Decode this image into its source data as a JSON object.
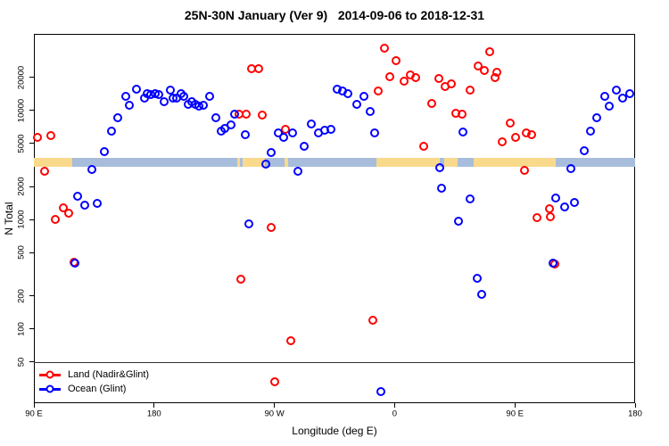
{
  "figure": {
    "title": "25N-30N January (Ver 9)   2014-09-06 to 2018-12-31"
  },
  "chart_data": {
    "type": "scatter",
    "title": "25N-30N January (Ver 9)   2014-09-06 to 2018-12-31",
    "xlabel": "Longitude (deg E)",
    "ylabel": "N Total",
    "x_axis": {
      "range_deg_east": [
        90,
        540
      ],
      "ticks": [
        {
          "value": 90,
          "label": "90 E"
        },
        {
          "value": 180,
          "label": "180"
        },
        {
          "value": 270,
          "label": "90 W"
        },
        {
          "value": 360,
          "label": "0"
        },
        {
          "value": 450,
          "label": "90 E"
        },
        {
          "value": 540,
          "label": "180"
        }
      ]
    },
    "y_axis": {
      "scale": "log",
      "range": [
        20,
        50000
      ],
      "ticks": [
        {
          "value": 20000,
          "label": "20000"
        },
        {
          "value": 10000,
          "label": "10000"
        },
        {
          "value": 5000,
          "label": "5000"
        },
        {
          "value": 2000,
          "label": "2000"
        },
        {
          "value": 1000,
          "label": "1000"
        },
        {
          "value": 500,
          "label": "500"
        },
        {
          "value": 200,
          "label": "200"
        },
        {
          "value": 100,
          "label": "100"
        },
        {
          "value": 50,
          "label": "50"
        }
      ]
    },
    "reference_line_y": 50,
    "map_strip": {
      "n_top": 3650,
      "n_bottom": 3050,
      "ocean_color": "#A7BDDB",
      "land_color": "#F9D98C",
      "ocean_range_deg": [
        90,
        540
      ],
      "land_segments_deg": [
        [
          90,
          119
        ],
        [
          242,
          244.5
        ],
        [
          246,
          263
        ],
        [
          277.5,
          280.5
        ],
        [
          346.5,
          394
        ],
        [
          397,
          407
        ],
        [
          419,
          480.5
        ]
      ]
    },
    "series": [
      {
        "name": "Land (Nadir&Glint)",
        "color": "#FF0000",
        "marker": "open-circle",
        "points": [
          [
            92.5,
            5700
          ],
          [
            102.5,
            5900
          ],
          [
            98,
            2770
          ],
          [
            106,
            1000
          ],
          [
            112,
            1280
          ],
          [
            116,
            1140
          ],
          [
            120,
            405
          ],
          [
            243.5,
            9260
          ],
          [
            249,
            9260
          ],
          [
            253,
            23800
          ],
          [
            258.5,
            23800
          ],
          [
            261,
            9100
          ],
          [
            267.5,
            840
          ],
          [
            278.5,
            6730
          ],
          [
            245,
            283
          ],
          [
            282.5,
            78
          ],
          [
            270.5,
            33
          ],
          [
            343.5,
            120
          ],
          [
            348,
            15100
          ],
          [
            352.5,
            36800
          ],
          [
            356.5,
            20400
          ],
          [
            361,
            28200
          ],
          [
            367,
            18600
          ],
          [
            372,
            20900
          ],
          [
            376,
            19700
          ],
          [
            382,
            4700
          ],
          [
            388,
            11600
          ],
          [
            393,
            19400
          ],
          [
            398,
            16600
          ],
          [
            402.5,
            17600
          ],
          [
            406,
            9440
          ],
          [
            410.5,
            9270
          ],
          [
            416.5,
            15400
          ],
          [
            422.5,
            25200
          ],
          [
            427,
            23000
          ],
          [
            431,
            34100
          ],
          [
            435,
            19700
          ],
          [
            436.5,
            22100
          ],
          [
            440.5,
            5160
          ],
          [
            446.5,
            7670
          ],
          [
            450.5,
            5670
          ],
          [
            457.5,
            2820
          ],
          [
            458.5,
            6240
          ],
          [
            462.5,
            6010
          ],
          [
            466.5,
            1040
          ],
          [
            476,
            1250
          ],
          [
            476.5,
            1060
          ],
          [
            480,
            396
          ]
        ]
      },
      {
        "name": "Ocean (Glint)",
        "color": "#0000FF",
        "marker": "open-circle",
        "points": [
          [
            120.5,
            400
          ],
          [
            122.5,
            1630
          ],
          [
            128,
            1350
          ],
          [
            133.5,
            2880
          ],
          [
            137.5,
            1400
          ],
          [
            142.5,
            4200
          ],
          [
            148,
            6470
          ],
          [
            153,
            8590
          ],
          [
            159,
            13500
          ],
          [
            161.5,
            11200
          ],
          [
            167,
            15700
          ],
          [
            173,
            12800
          ],
          [
            175,
            14300
          ],
          [
            177.5,
            13800
          ],
          [
            181,
            14300
          ],
          [
            183.5,
            14000
          ],
          [
            187.5,
            11900
          ],
          [
            192,
            15400
          ],
          [
            194,
            12800
          ],
          [
            197,
            13000
          ],
          [
            200,
            14100
          ],
          [
            202,
            13500
          ],
          [
            205.5,
            11400
          ],
          [
            208,
            11900
          ],
          [
            211,
            11400
          ],
          [
            213.5,
            11000
          ],
          [
            217,
            11200
          ],
          [
            221.5,
            13300
          ],
          [
            226,
            8590
          ],
          [
            230,
            6470
          ],
          [
            233,
            6860
          ],
          [
            237.5,
            7390
          ],
          [
            240,
            9260
          ],
          [
            248,
            6010
          ],
          [
            251,
            910
          ],
          [
            263.5,
            3220
          ],
          [
            267.5,
            4120
          ],
          [
            273,
            6240
          ],
          [
            277,
            5670
          ],
          [
            283.5,
            6240
          ],
          [
            287.5,
            2770
          ],
          [
            292.5,
            4700
          ],
          [
            297.5,
            7530
          ],
          [
            303,
            6240
          ],
          [
            307.5,
            6610
          ],
          [
            312.5,
            6730
          ],
          [
            317,
            15500
          ],
          [
            321,
            14900
          ],
          [
            325,
            14300
          ],
          [
            331.5,
            11400
          ],
          [
            337,
            13300
          ],
          [
            341.5,
            9820
          ],
          [
            345,
            6240
          ],
          [
            349.5,
            27
          ],
          [
            394,
            2990
          ],
          [
            395,
            1940
          ],
          [
            408,
            965
          ],
          [
            411,
            6360
          ],
          [
            416.5,
            1550
          ],
          [
            422,
            288
          ],
          [
            425,
            209
          ],
          [
            478.5,
            400
          ],
          [
            480.5,
            1570
          ],
          [
            487.5,
            1300
          ],
          [
            492,
            2930
          ],
          [
            494.5,
            1430
          ],
          [
            502,
            4280
          ],
          [
            506.5,
            6470
          ],
          [
            511.5,
            8590
          ],
          [
            517.5,
            13300
          ],
          [
            520.5,
            11000
          ],
          [
            526,
            15400
          ],
          [
            530.5,
            13000
          ],
          [
            536,
            14100
          ]
        ]
      }
    ]
  },
  "legend": {
    "items": [
      {
        "label": "Land (Nadir&Glint)",
        "color": "#FF0000"
      },
      {
        "label": "Ocean (Glint)",
        "color": "#0000FF"
      }
    ]
  }
}
